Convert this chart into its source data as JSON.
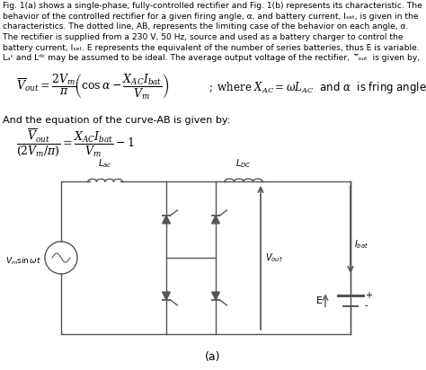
{
  "bg_color": "#ffffff",
  "text_color": "#000000",
  "circuit_color": "#555555",
  "caption": "(a)",
  "paragraph_lines": [
    "Fig. 1(a) shows a single-phase, fully-controlled rectifier and Fig. 1(b) represents its characteristic. The",
    "behavior of the controlled rectifier for a given firing angle, α, and battery current, Iᴏᴇᴛ, is given in the",
    "characteristics. The dotted line, AB, represents the limiting case of the behavior on each angle, α.",
    "The rectifier is supplied from a 230 V, 50 Hz, source and used as a battery charger to control the",
    "battery current, Iᴏᴇᴛ. E represents the equivalent of the number of series batteries, thus E is variable.",
    "LᴀC and LᵈC may be assumed to be ideal. The average output voltage of the rectifier,  ᵤ̅out  is given by,"
  ]
}
